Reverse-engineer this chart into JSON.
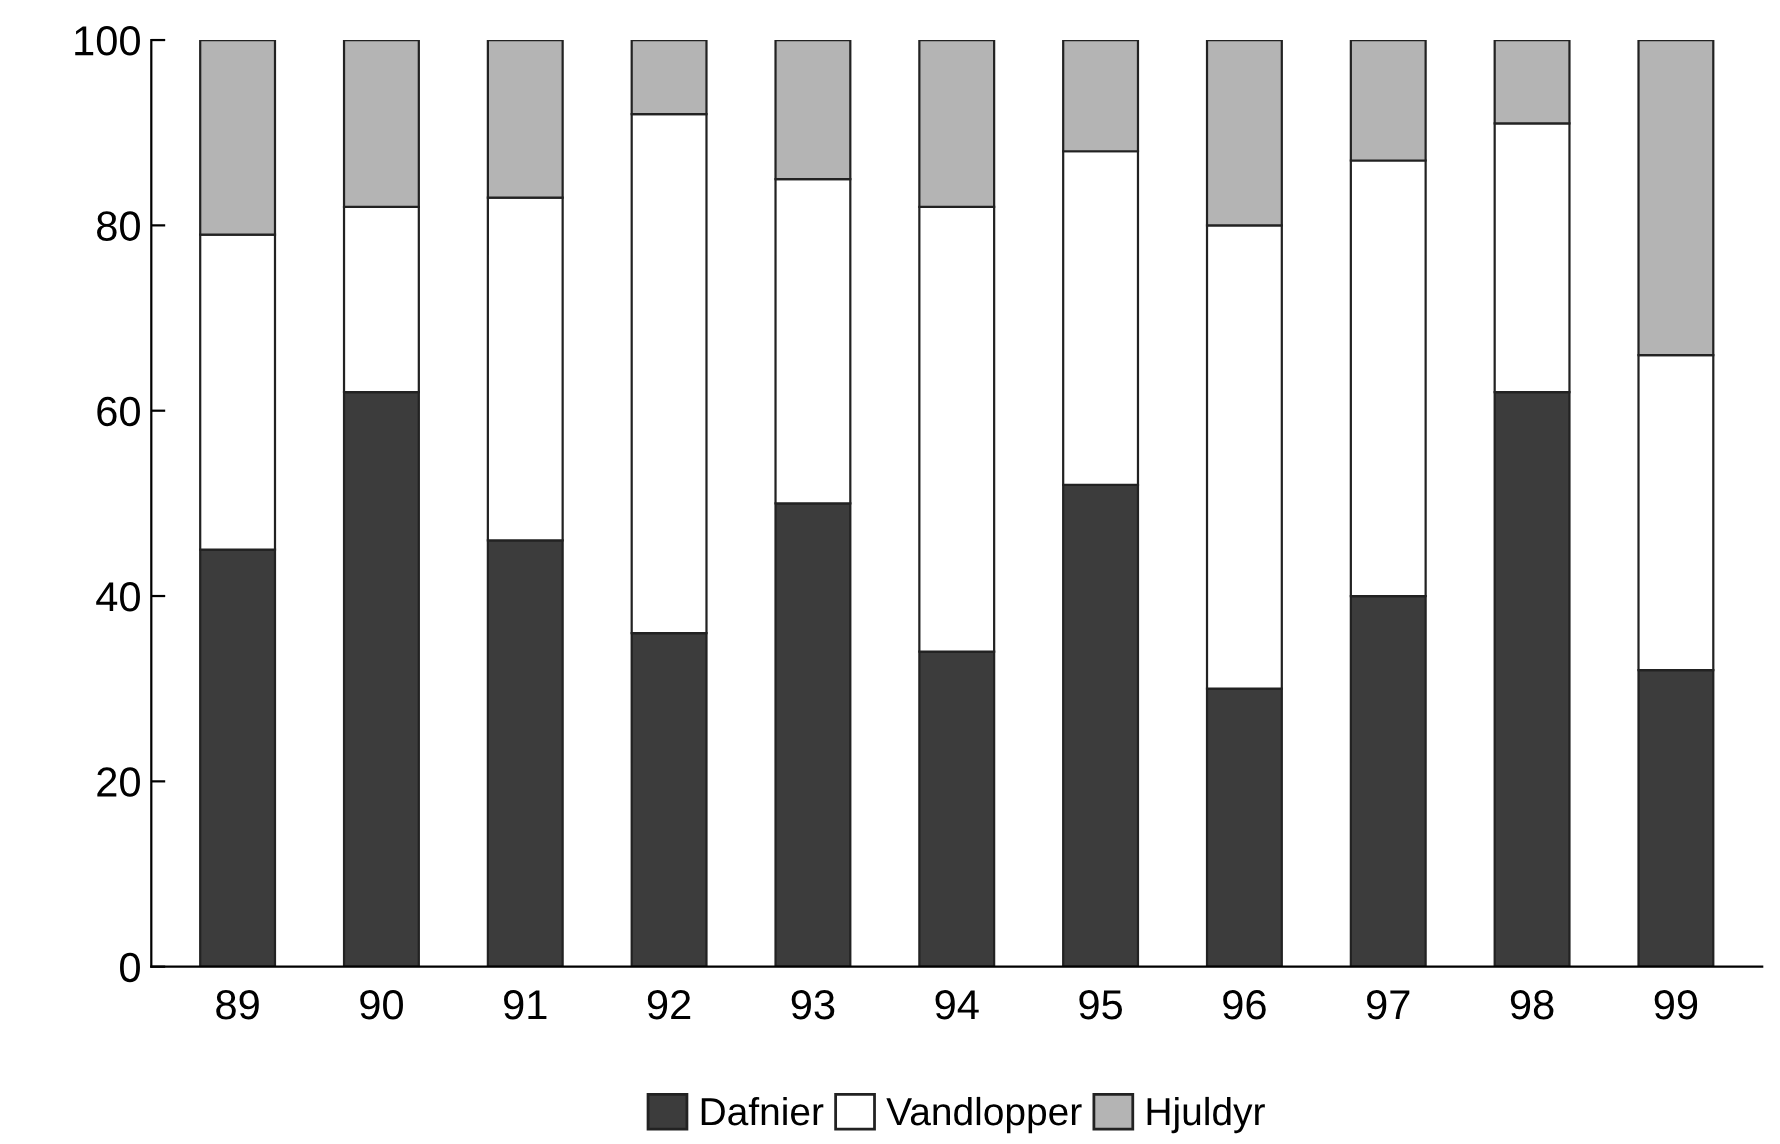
{
  "chart_data": {
    "type": "bar",
    "stacked": true,
    "categories": [
      "89",
      "90",
      "91",
      "92",
      "93",
      "94",
      "95",
      "96",
      "97",
      "98",
      "99"
    ],
    "series": [
      {
        "name": "Dafnier",
        "color": "#3c3c3c",
        "values": [
          45,
          62,
          46,
          36,
          50,
          34,
          52,
          30,
          40,
          62,
          32
        ]
      },
      {
        "name": "Vandlopper",
        "color": "#ffffff",
        "values": [
          34,
          20,
          37,
          56,
          35,
          48,
          36,
          50,
          47,
          29,
          34
        ]
      },
      {
        "name": "Hjuldyr",
        "color": "#b4b4b4",
        "values": [
          21,
          18,
          17,
          8,
          15,
          18,
          12,
          20,
          13,
          9,
          34
        ]
      }
    ],
    "ylim": [
      0,
      100
    ],
    "yticks": [
      0,
      20,
      40,
      60,
      80,
      100
    ],
    "grid": false,
    "legend": "bottom"
  }
}
